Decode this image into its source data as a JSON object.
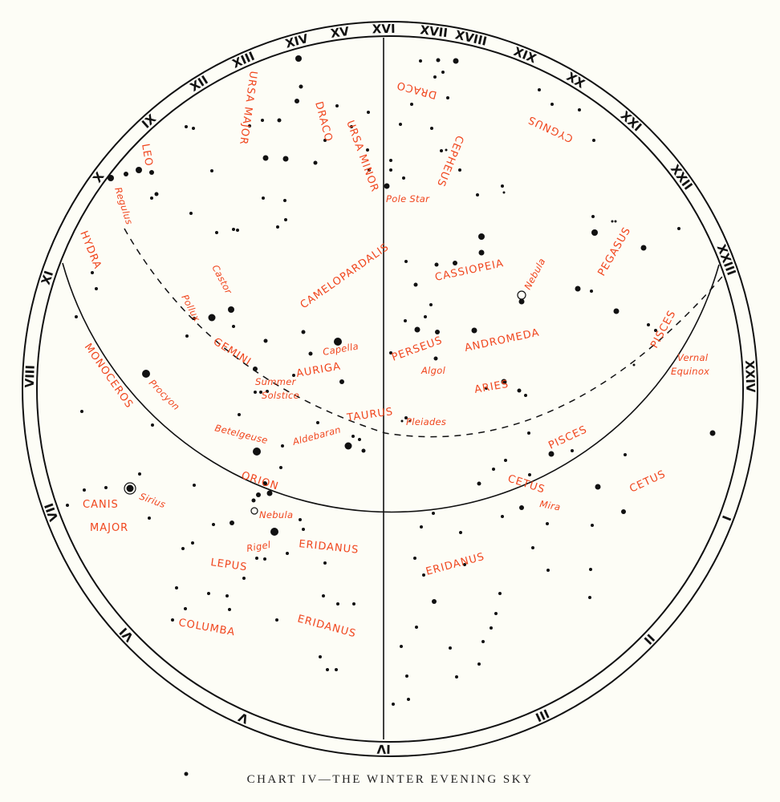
{
  "caption": "CHART IV—THE WINTER EVENING SKY",
  "colors": {
    "labels": "#f0461e",
    "stars": "#111111",
    "background": "#fdfdf6"
  },
  "hour_ring": [
    "XVI",
    "XVII",
    "XVIII",
    "XIX",
    "XX",
    "XXI",
    "XXII",
    "XXIII",
    "XXIV",
    "I",
    "II",
    "III",
    "IV",
    "V",
    "VI",
    "VII",
    "VIII",
    "XI",
    "X",
    "IX",
    "XII",
    "XIII",
    "XIV",
    "XV"
  ],
  "constellations": {
    "ursa_major": "URSA MAJOR",
    "draco": "DRACO",
    "ursa_minor": "URSA MINOR",
    "draco2": "DRACO",
    "cygnus": "CYGNUS",
    "cepheus": "CEPHEUS",
    "leo": "LEO",
    "hydra": "HYDRA",
    "camelopardalis": "CAMELOPARDALIS",
    "cassiopeia": "CASSIOPEIA",
    "pegasus": "PEGASUS",
    "gemini": "GEMINI",
    "auriga": "AURIGA",
    "perseus": "PERSEUS",
    "andromeda": "ANDROMEDA",
    "aries": "ARIES",
    "pisces": "PISCES",
    "monoceros": "MONOCEROS",
    "taurus": "TAURUS",
    "pisces2": "PISCES",
    "orion": "ORION",
    "cetus": "CETUS",
    "cetus2": "CETUS",
    "canis": "CANIS",
    "major": "MAJOR",
    "eridanus": "ERIDANUS",
    "lepus": "LEPUS",
    "eridanus2": "ERIDANUS",
    "columba": "COLUMBA",
    "eridanus3": "ERIDANUS"
  },
  "stars": {
    "pole_star": "Pole Star",
    "regulus": "Regulus",
    "castor": "Castor",
    "pollux": "Pollux",
    "capella": "Capella",
    "summer": "Summer",
    "solstice": "Solstice",
    "algol": "Algol",
    "vernal": "Vernal",
    "equinox": "Equinox",
    "procyon": "Procyon",
    "pleiades": "Pleiades",
    "betelgeuse": "Betelgeuse",
    "aldebaran": "Aldebaran",
    "mira": "Mira",
    "sirius": "Sirius",
    "nebula_orion": "Nebula",
    "rigel": "Rigel",
    "nebula_andromeda": "Nebula"
  }
}
